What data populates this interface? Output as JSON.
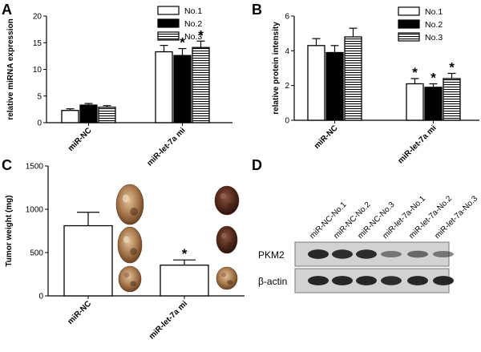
{
  "chart_data": [
    {
      "panel": "A",
      "type": "bar",
      "ylabel": "relative miRNA expression",
      "ylim": [
        0,
        20
      ],
      "yticks": [
        0,
        5,
        10,
        15,
        20
      ],
      "categories": [
        "miR-NC",
        "miR-let-7a mi"
      ],
      "series": [
        {
          "name": "No.1",
          "values": [
            2.3,
            13.3
          ],
          "errors": [
            0.3,
            1.2
          ]
        },
        {
          "name": "No.2",
          "values": [
            3.3,
            12.6
          ],
          "errors": [
            0.3,
            1.3
          ]
        },
        {
          "name": "No.3",
          "values": [
            2.9,
            14.1
          ],
          "errors": [
            0.3,
            1.2
          ]
        }
      ],
      "significance": [
        [
          "",
          "",
          ""
        ],
        [
          "*",
          "*",
          "*"
        ]
      ]
    },
    {
      "panel": "B",
      "type": "bar",
      "ylabel": "relative protein intensity",
      "ylim": [
        0,
        6
      ],
      "yticks": [
        0,
        2,
        4,
        6
      ],
      "categories": [
        "miR-NC",
        "miR-let-7a mi"
      ],
      "series": [
        {
          "name": "No.1",
          "values": [
            4.3,
            2.1
          ],
          "errors": [
            0.4,
            0.3
          ]
        },
        {
          "name": "No.2",
          "values": [
            3.9,
            1.9
          ],
          "errors": [
            0.4,
            0.2
          ]
        },
        {
          "name": "No.3",
          "values": [
            4.8,
            2.4
          ],
          "errors": [
            0.5,
            0.3
          ]
        }
      ],
      "significance": [
        [
          "",
          "",
          ""
        ],
        [
          "*",
          "*",
          "*"
        ]
      ]
    },
    {
      "panel": "C",
      "type": "bar",
      "ylabel": "Tumor weight (mg)",
      "ylim": [
        0,
        1500
      ],
      "yticks": [
        0,
        500,
        1000,
        1500
      ],
      "categories": [
        "miR-NC",
        "miR-let-7a mi"
      ],
      "series": [
        {
          "name": "Tumor weight",
          "values": [
            810,
            355
          ],
          "errors": [
            155,
            60
          ]
        }
      ],
      "significance": [
        [
          ""
        ],
        [
          "*"
        ]
      ]
    }
  ],
  "blot": {
    "panel": "D",
    "lanes": [
      "miR-NC-No.1",
      "miR-NC-No.2",
      "miR-NC-No.3",
      "miR-let-7a-No.1",
      "miR-let-7a-No.2",
      "miR-let-7a-No.3"
    ],
    "rows": [
      {
        "label": "PKM2",
        "intensity": [
          0.95,
          0.9,
          0.9,
          0.35,
          0.45,
          0.35
        ]
      },
      {
        "label": "β-actin",
        "intensity": [
          0.95,
          0.95,
          0.95,
          0.9,
          0.95,
          0.95
        ]
      }
    ]
  },
  "colors": {
    "bar_white": "#ffffff",
    "bar_black": "#000000",
    "stroke": "#000000",
    "gel_bg": "#d2d2d2",
    "band": "#1e1e1e"
  }
}
